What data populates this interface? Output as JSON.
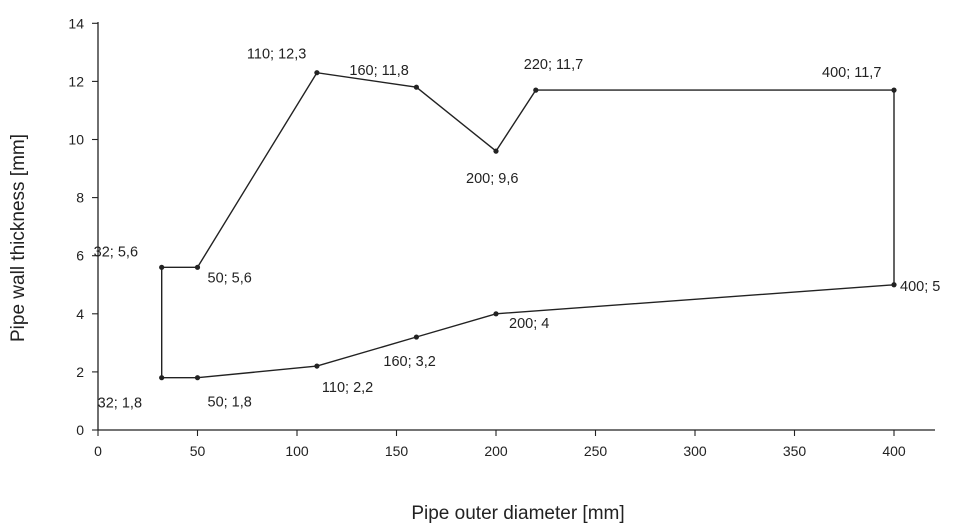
{
  "chart_data": {
    "type": "line",
    "title": "",
    "xlabel": "Pipe outer diameter [mm]",
    "ylabel": "Pipe wall thickness [mm]",
    "xlim": [
      0,
      420
    ],
    "ylim": [
      0,
      14
    ],
    "xticks": [
      0,
      50,
      100,
      150,
      200,
      250,
      300,
      350,
      400
    ],
    "yticks": [
      0,
      2,
      4,
      6,
      8,
      10,
      12,
      14
    ],
    "grid": false,
    "legend": "none",
    "line_color": "#222222",
    "outline": [
      {
        "x": 32,
        "y": 1.8,
        "label": "32; 1,8"
      },
      {
        "x": 32,
        "y": 5.6,
        "label": "32; 5,6"
      },
      {
        "x": 50,
        "y": 5.6,
        "label": "50; 5,6"
      },
      {
        "x": 110,
        "y": 12.3,
        "label": "110; 12,3"
      },
      {
        "x": 160,
        "y": 11.8,
        "label": "160; 11,8"
      },
      {
        "x": 200,
        "y": 9.6,
        "label": "200; 9,6"
      },
      {
        "x": 220,
        "y": 11.7,
        "label": "220; 11,7"
      },
      {
        "x": 400,
        "y": 11.7,
        "label": "400; 11,7"
      },
      {
        "x": 400,
        "y": 5,
        "label": "400; 5"
      },
      {
        "x": 200,
        "y": 4,
        "label": "200; 4"
      },
      {
        "x": 160,
        "y": 3.2,
        "label": "160; 3,2"
      },
      {
        "x": 110,
        "y": 2.2,
        "label": "110; 2,2"
      },
      {
        "x": 50,
        "y": 1.8,
        "label": "50; 1,8"
      },
      {
        "x": 32,
        "y": 1.8,
        "label": ""
      }
    ]
  }
}
